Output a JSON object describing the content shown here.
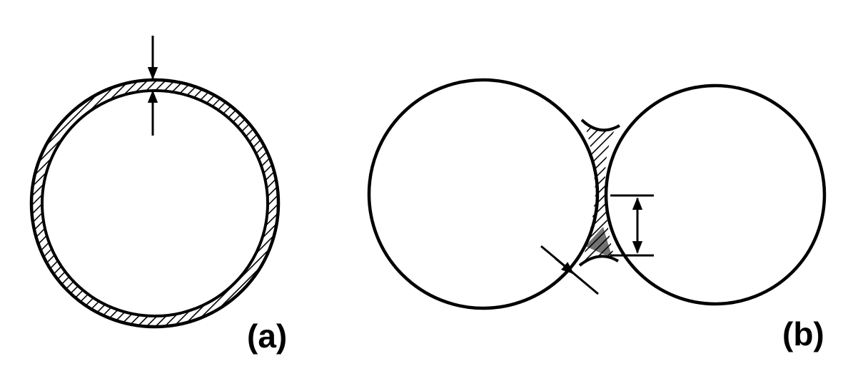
{
  "panels": [
    {
      "id": "a",
      "label": "(a)",
      "description": ""
    },
    {
      "id": "b",
      "label": "(b)",
      "description": ""
    }
  ],
  "colors": {
    "ink": "#000000",
    "paper": "#ffffff"
  }
}
